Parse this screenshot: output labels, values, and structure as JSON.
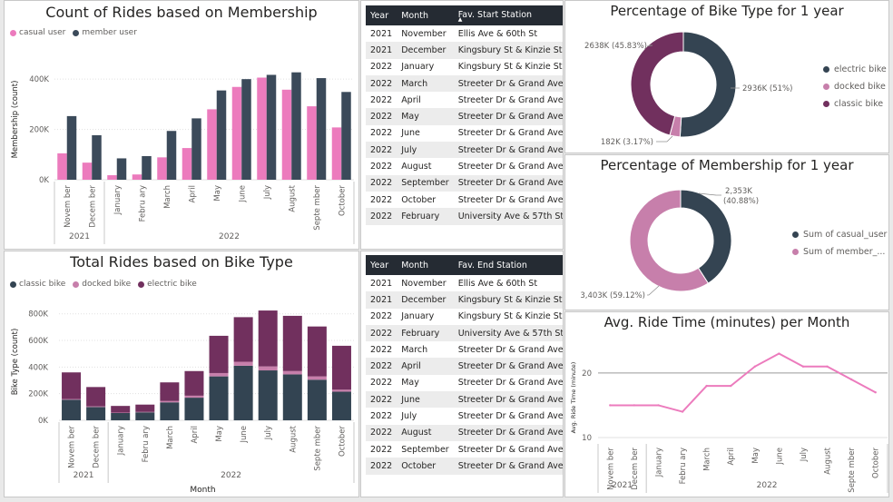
{
  "membership_chart": {
    "title": "Count of Rides based on Membership",
    "legend": [
      {
        "name": "casual user",
        "color": "#ec7bbd"
      },
      {
        "name": "member user",
        "color": "#3b4a5a"
      }
    ],
    "ylabel": "Membership (count)",
    "yticks": [
      "400K",
      "200K",
      "0K"
    ],
    "year_labels": [
      "2021",
      "2022"
    ]
  },
  "biketype_chart": {
    "title": "Total Rides based on Bike Type",
    "legend": [
      {
        "name": "classic bike",
        "color": "#334452"
      },
      {
        "name": "docked bike",
        "color": "#c77fab"
      },
      {
        "name": "electric bike",
        "color": "#71305e"
      }
    ],
    "ylabel": "Bike Type (count)",
    "xlabel": "Month",
    "yticks": [
      "800K",
      "600K",
      "400K",
      "200K",
      "0K"
    ],
    "year_labels": [
      "2021",
      "2022"
    ]
  },
  "start_table": {
    "headers": [
      "Year",
      "Month",
      "Fav. Start Station"
    ],
    "rows": [
      [
        "2021",
        "November",
        "Ellis Ave & 60th St"
      ],
      [
        "2021",
        "December",
        "Kingsbury St & Kinzie St"
      ],
      [
        "2022",
        "January",
        "Kingsbury St & Kinzie St"
      ],
      [
        "2022",
        "March",
        "Streeter Dr & Grand Ave"
      ],
      [
        "2022",
        "April",
        "Streeter Dr & Grand Ave"
      ],
      [
        "2022",
        "May",
        "Streeter Dr & Grand Ave"
      ],
      [
        "2022",
        "June",
        "Streeter Dr & Grand Ave"
      ],
      [
        "2022",
        "July",
        "Streeter Dr & Grand Ave"
      ],
      [
        "2022",
        "August",
        "Streeter Dr & Grand Ave"
      ],
      [
        "2022",
        "September",
        "Streeter Dr & Grand Ave"
      ],
      [
        "2022",
        "October",
        "Streeter Dr & Grand Ave"
      ],
      [
        "2022",
        "February",
        "University Ave & 57th St"
      ]
    ]
  },
  "end_table": {
    "headers": [
      "Year",
      "Month",
      "Fav. End Station"
    ],
    "rows": [
      [
        "2021",
        "November",
        "Ellis Ave & 60th St"
      ],
      [
        "2021",
        "December",
        "Kingsbury St & Kinzie St"
      ],
      [
        "2022",
        "January",
        "Kingsbury St & Kinzie St"
      ],
      [
        "2022",
        "February",
        "University Ave & 57th St"
      ],
      [
        "2022",
        "March",
        "Streeter Dr & Grand Ave"
      ],
      [
        "2022",
        "April",
        "Streeter Dr & Grand Ave"
      ],
      [
        "2022",
        "May",
        "Streeter Dr & Grand Ave"
      ],
      [
        "2022",
        "June",
        "Streeter Dr & Grand Ave"
      ],
      [
        "2022",
        "July",
        "Streeter Dr & Grand Ave"
      ],
      [
        "2022",
        "August",
        "Streeter Dr & Grand Ave"
      ],
      [
        "2022",
        "September",
        "Streeter Dr & Grand Ave"
      ],
      [
        "2022",
        "October",
        "Streeter Dr & Grand Ave"
      ]
    ]
  },
  "bike_pie": {
    "title": "Percentage of Bike Type for 1 year",
    "legend": [
      "electric bike",
      "docked bike",
      "classic bike"
    ]
  },
  "member_pie": {
    "title": "Percentage of Membership for 1 year",
    "legend": [
      "Sum of casual_user",
      "Sum of member_..."
    ]
  },
  "ride_time": {
    "title": "Avg. Ride Time (minutes) per Month",
    "ylabel": "Avg. Ride Time (minute)",
    "year_labels": [
      "2021",
      "2022"
    ]
  },
  "chart_data": [
    {
      "type": "bar",
      "title": "Count of Rides based on Membership",
      "ylabel": "Membership (count)",
      "categories": [
        "November",
        "December",
        "January",
        "February",
        "March",
        "April",
        "May",
        "June",
        "July",
        "August",
        "September",
        "October"
      ],
      "series": [
        {
          "name": "casual user",
          "color": "#ec7bbd",
          "values": [
            105000,
            68000,
            18000,
            21000,
            89000,
            126000,
            280000,
            369000,
            406000,
            358000,
            292000,
            208000
          ]
        },
        {
          "name": "member user",
          "color": "#3b4a5a",
          "values": [
            253000,
            177000,
            85000,
            94000,
            194000,
            244000,
            355000,
            400000,
            417000,
            427000,
            404000,
            349000
          ]
        }
      ],
      "ylim": [
        0,
        480000
      ]
    },
    {
      "type": "bar",
      "title": "Total Rides based on Bike Type",
      "xlabel": "Month",
      "ylabel": "Bike Type (count)",
      "stacked": true,
      "categories": [
        "November",
        "December",
        "January",
        "February",
        "March",
        "April",
        "May",
        "June",
        "July",
        "August",
        "September",
        "October"
      ],
      "series": [
        {
          "name": "classic bike",
          "color": "#334452",
          "values": [
            155000,
            100000,
            55000,
            60000,
            135000,
            170000,
            330000,
            410000,
            375000,
            345000,
            305000,
            215000
          ]
        },
        {
          "name": "docked bike",
          "color": "#c77fab",
          "values": [
            5000,
            5000,
            3000,
            3000,
            10000,
            15000,
            25000,
            30000,
            30000,
            25000,
            25000,
            15000
          ]
        },
        {
          "name": "electric bike",
          "color": "#71305e",
          "values": [
            200000,
            145000,
            50000,
            55000,
            140000,
            185000,
            280000,
            335000,
            420000,
            415000,
            375000,
            330000
          ]
        }
      ],
      "ylim": [
        0,
        880000
      ]
    },
    {
      "type": "pie",
      "title": "Percentage of Bike Type for 1 year",
      "donut": true,
      "slices": [
        {
          "name": "electric bike",
          "value": 2936,
          "label": "2936K (51%)",
          "color": "#344452"
        },
        {
          "name": "docked bike",
          "value": 182,
          "label": "182K (3.17%)",
          "color": "#c77fab"
        },
        {
          "name": "classic bike",
          "value": 2638,
          "label": "2638K (45.83%)",
          "color": "#71305e"
        }
      ]
    },
    {
      "type": "pie",
      "title": "Percentage of Membership for 1 year",
      "donut": true,
      "slices": [
        {
          "name": "Sum of casual_user",
          "value": 2353,
          "label_top": "2,353K",
          "label_bottom": "(40.88%)",
          "color": "#344452"
        },
        {
          "name": "Sum of member_...",
          "value": 3403,
          "label": "3,403K (59.12%)",
          "color": "#c77fab"
        }
      ]
    },
    {
      "type": "line",
      "title": "Avg. Ride Time (minutes) per Month",
      "ylabel": "Avg. Ride Time (minute)",
      "x": [
        "November",
        "December",
        "January",
        "February",
        "March",
        "April",
        "May",
        "June",
        "July",
        "August",
        "September",
        "October"
      ],
      "series": [
        {
          "color": "#ec7bbd",
          "values": [
            15,
            15,
            15,
            14,
            18,
            18,
            21,
            23,
            21,
            21,
            19,
            17
          ]
        }
      ],
      "yticks": [
        10,
        20
      ],
      "ylim": [
        10,
        24
      ]
    }
  ]
}
